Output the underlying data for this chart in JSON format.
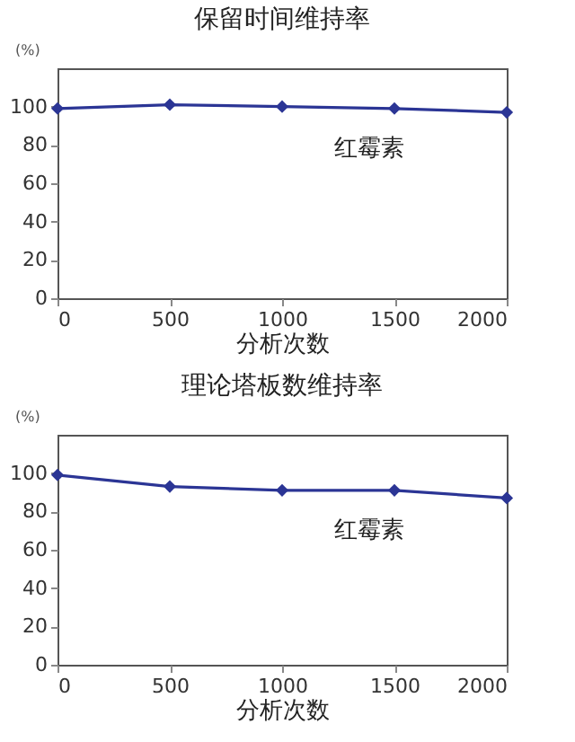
{
  "chart_data": [
    {
      "type": "line",
      "title": "保留时间维持率",
      "xlabel": "分析次数",
      "ylabel": "(%)",
      "x": [
        0,
        500,
        1000,
        1500,
        2000
      ],
      "series": [
        {
          "name": "红霉素",
          "color": "#2b3595",
          "values": [
            99,
            101,
            100,
            99,
            97
          ]
        }
      ],
      "xlim": [
        0,
        2000
      ],
      "xticks": [
        0,
        500,
        1000,
        1500,
        2000
      ],
      "ylim": [
        0,
        120
      ],
      "yticks": [
        0,
        20,
        40,
        60,
        80,
        100
      ],
      "marker": "diamond",
      "line_style": "solid",
      "grid": false
    },
    {
      "type": "line",
      "title": "理论塔板数维持率",
      "xlabel": "分析次数",
      "ylabel": "(%)",
      "x": [
        0,
        500,
        1000,
        1500,
        2000
      ],
      "series": [
        {
          "name": "红霉素",
          "color": "#2b3595",
          "values": [
            99,
            93,
            91,
            91,
            87
          ]
        }
      ],
      "xlim": [
        0,
        2000
      ],
      "xticks": [
        0,
        500,
        1000,
        1500,
        2000
      ],
      "ylim": [
        0,
        120
      ],
      "yticks": [
        0,
        20,
        40,
        60,
        80,
        100
      ],
      "marker": "diamond",
      "line_style": "solid",
      "grid": false
    }
  ]
}
